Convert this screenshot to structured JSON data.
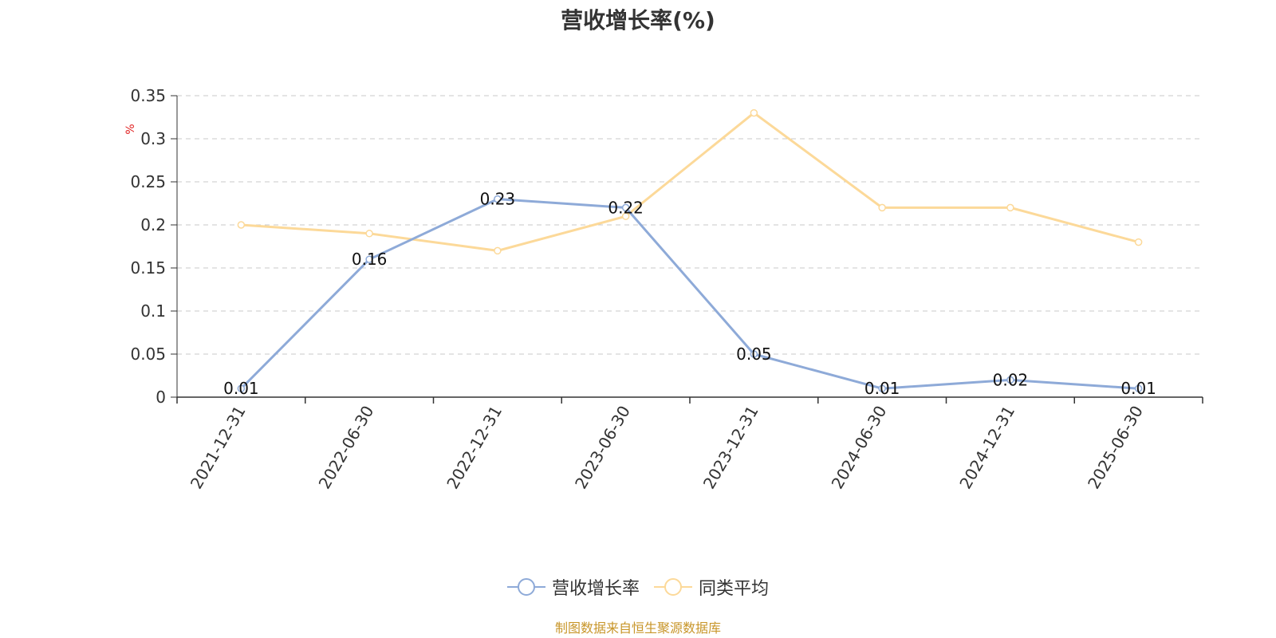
{
  "chart_data": {
    "type": "line",
    "title": "营收增长率(%)",
    "ylabel": "%",
    "xlabel": "",
    "categories": [
      "2021-12-31",
      "2022-06-30",
      "2022-12-31",
      "2023-06-30",
      "2023-12-31",
      "2024-06-30",
      "2024-12-31",
      "2025-06-30"
    ],
    "ylim": [
      0,
      0.35
    ],
    "yticks": [
      "0",
      "0.05",
      "0.1",
      "0.15",
      "0.2",
      "0.25",
      "0.3",
      "0.35"
    ],
    "grid": true,
    "legend_position": "bottom",
    "series": [
      {
        "name": "营收增长率",
        "values": [
          0.01,
          0.16,
          0.23,
          0.22,
          0.05,
          0.01,
          0.02,
          0.01
        ],
        "labels": [
          "0.01",
          "0.16",
          "0.23",
          "0.22",
          "0.05",
          "0.01",
          "0.02",
          "0.01"
        ],
        "color": "#8eaad8"
      },
      {
        "name": "同类平均",
        "values": [
          0.2,
          0.19,
          0.17,
          0.21,
          0.33,
          0.22,
          0.22,
          0.18
        ],
        "color": "#fcd999"
      }
    ]
  },
  "footer": {
    "text": "制图数据来自恒生聚源数据库",
    "color": "#c8962a"
  },
  "unit_color": "#e02020"
}
